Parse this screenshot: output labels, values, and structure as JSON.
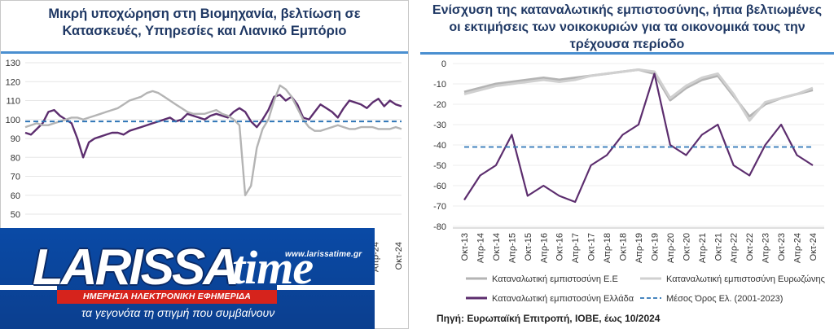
{
  "chart_data": [
    {
      "type": "line",
      "title": "Μικρή υποχώρηση στη Βιομηχανία, βελτίωση σε Κατασκευές, Υπηρεσίες και Λιανικό Εμπόριο",
      "ylim": [
        50,
        130
      ],
      "yticks": [
        50,
        60,
        70,
        80,
        90,
        100,
        110,
        120,
        130
      ],
      "xticks_visible": [
        "Απρ-24",
        "Οκτ-24"
      ],
      "series": [
        {
          "color": "#5c2d6e",
          "x": [
            0,
            2,
            4,
            6,
            8,
            10,
            12,
            14,
            16,
            18,
            20,
            22,
            24,
            26,
            28,
            30,
            32,
            34,
            36,
            38,
            40,
            42,
            44,
            46,
            48,
            50,
            52,
            54,
            56,
            58,
            60,
            62,
            64,
            66,
            68,
            70,
            72,
            74,
            76,
            78,
            80,
            82,
            84,
            86,
            88,
            90,
            92,
            94,
            96,
            98,
            100,
            102,
            104,
            106,
            108,
            110,
            112,
            114,
            116,
            118,
            120,
            122,
            124,
            126,
            128,
            130
          ],
          "values": [
            93,
            92,
            95,
            98,
            104,
            105,
            102,
            100,
            98,
            90,
            80,
            88,
            90,
            91,
            92,
            93,
            93,
            92,
            94,
            95,
            96,
            97,
            98,
            99,
            100,
            101,
            99,
            100,
            103,
            102,
            101,
            100,
            102,
            103,
            102,
            101,
            104,
            106,
            104,
            99,
            96,
            100,
            105,
            112,
            113,
            110,
            112,
            108,
            101,
            100,
            104,
            108,
            106,
            104,
            101,
            106,
            110,
            109,
            108,
            106,
            109,
            111,
            107,
            110,
            108,
            107
          ]
        },
        {
          "color": "#b4b4b4",
          "x": [
            0,
            2,
            4,
            6,
            8,
            10,
            12,
            14,
            16,
            18,
            20,
            22,
            24,
            26,
            28,
            30,
            32,
            34,
            36,
            38,
            40,
            42,
            44,
            46,
            48,
            50,
            52,
            54,
            56,
            58,
            60,
            62,
            64,
            66,
            68,
            70,
            72,
            74,
            76,
            78,
            80,
            82,
            84,
            86,
            88,
            90,
            92,
            94,
            96,
            98,
            100,
            102,
            104,
            106,
            108,
            110,
            112,
            114,
            116,
            118,
            120,
            122,
            124,
            126,
            128,
            130
          ],
          "values": [
            96,
            97,
            98,
            97,
            97,
            98,
            99,
            100,
            101,
            101,
            100,
            101,
            102,
            103,
            104,
            105,
            106,
            108,
            110,
            111,
            112,
            114,
            115,
            114,
            112,
            110,
            108,
            106,
            104,
            103,
            103,
            103,
            104,
            105,
            103,
            102,
            100,
            97,
            60,
            65,
            85,
            95,
            100,
            110,
            118,
            116,
            112,
            106,
            100,
            96,
            94,
            94,
            95,
            96,
            97,
            96,
            95,
            95,
            96,
            96,
            96,
            95,
            95,
            95,
            96,
            95
          ]
        },
        {
          "color": "#2e75b6",
          "x": [
            0,
            130
          ],
          "values": [
            99,
            99
          ],
          "dashed": true
        }
      ]
    },
    {
      "type": "line",
      "title": "Ενίσχυση της καταναλωτικής εμπιστοσύνης, ήπια βελτιωμένες οι εκτιμήσεις των νοικοκυριών για τα οικονομικά τους την τρέχουσα περίοδο",
      "ylim": [
        -80,
        0
      ],
      "yticks": [
        0,
        -10,
        -20,
        -30,
        -40,
        -50,
        -60,
        -70,
        -80
      ],
      "categories": [
        "Οκτ-13",
        "Απρ-14",
        "Οκτ-14",
        "Απρ-15",
        "Οκτ-15",
        "Απρ-16",
        "Οκτ-16",
        "Απρ-17",
        "Οκτ-17",
        "Απρ-18",
        "Οκτ-18",
        "Απρ-19",
        "Οκτ-19",
        "Απρ-20",
        "Οκτ-20",
        "Απρ-21",
        "Οκτ-21",
        "Απρ-22",
        "Οκτ-22",
        "Απρ-23",
        "Οκτ-23",
        "Απρ-24",
        "Οκτ-24"
      ],
      "series": [
        {
          "name": "Καταναλωτική εμπιστοσύνη Ε.Ε",
          "color": "#b4b4b4",
          "values": [
            -14,
            -12,
            -10,
            -9,
            -8,
            -7,
            -8,
            -7,
            -6,
            -5,
            -4,
            -3,
            -5,
            -18,
            -12,
            -8,
            -6,
            -16,
            -26,
            -20,
            -17,
            -15,
            -13
          ]
        },
        {
          "name": "Καταναλωτική εμπιστοσύνη Ευρωζώνης",
          "color": "#d0d0d0",
          "values": [
            -15,
            -13,
            -11,
            -10,
            -9,
            -8,
            -9,
            -8,
            -6,
            -5,
            -4,
            -3,
            -4,
            -17,
            -11,
            -7,
            -5,
            -15,
            -28,
            -19,
            -17,
            -15,
            -12
          ]
        },
        {
          "name": "Καταναλωτική εμπιστοσύνη Ελλάδα",
          "color": "#5c2d6e",
          "values": [
            -67,
            -55,
            -50,
            -35,
            -65,
            -60,
            -65,
            -68,
            -50,
            -45,
            -35,
            -30,
            -5,
            -40,
            -45,
            -35,
            -30,
            -50,
            -55,
            -40,
            -30,
            -45,
            -50
          ]
        },
        {
          "name": "Μέσος Όρος Ελ. (2001-2023)",
          "color": "#2e75b6",
          "values": [
            -41,
            -41,
            -41,
            -41,
            -41,
            -41,
            -41,
            -41,
            -41,
            -41,
            -41,
            -41,
            -41,
            -41,
            -41,
            -41,
            -41,
            -41,
            -41,
            -41,
            -41,
            -41,
            -41
          ],
          "dashed": true
        }
      ],
      "legend_placement": "bottom"
    }
  ],
  "source": "Πηγή: Ευρωπαϊκή Επιτροπή, ΙΟΒΕ, έως 10/2024",
  "logo": {
    "word": "LARISSA",
    "time": "time",
    "url": "www.larissatime.gr",
    "band": "ΗΜΕΡΗΣΙΑ ΗΛΕΚΤΡΟΝΙΚΗ ΕΦΗΜΕΡΙΔΑ",
    "slogan": "τα γεγονότα τη στιγμή που συμβαίνουν"
  }
}
